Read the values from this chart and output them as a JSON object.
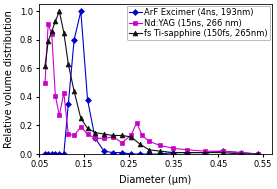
{
  "title": "",
  "xlabel": "Diameter (μm)",
  "ylabel": "Relative volume distribution",
  "xlim": [
    0.05,
    0.57
  ],
  "ylim": [
    0.0,
    1.05
  ],
  "xticks": [
    0.05,
    0.15,
    0.25,
    0.35,
    0.45,
    0.55
  ],
  "yticks": [
    0.0,
    0.2,
    0.4,
    0.6,
    0.8,
    1.0
  ],
  "series": [
    {
      "label": "ArF Excimer (4ns, 193nm)",
      "color": "#0000cc",
      "marker": "D",
      "markersize": 3.0,
      "x": [
        0.063,
        0.07,
        0.078,
        0.086,
        0.095,
        0.105,
        0.115,
        0.128,
        0.143,
        0.158,
        0.175,
        0.195,
        0.215,
        0.235,
        0.255,
        0.275,
        0.295,
        0.32,
        0.35,
        0.38,
        0.42,
        0.46,
        0.5,
        0.54
      ],
      "y": [
        0.0,
        0.0,
        0.0,
        0.0,
        0.0,
        0.0,
        0.35,
        0.8,
        1.0,
        0.38,
        0.11,
        0.02,
        0.01,
        0.01,
        0.0,
        0.0,
        0.0,
        0.0,
        0.01,
        0.01,
        0.01,
        0.02,
        0.01,
        0.0
      ]
    },
    {
      "label": "Nd:YAG (15ns, 266 nm)",
      "color": "#cc00cc",
      "marker": "s",
      "markersize": 3.5,
      "x": [
        0.063,
        0.07,
        0.078,
        0.086,
        0.095,
        0.105,
        0.115,
        0.128,
        0.143,
        0.158,
        0.175,
        0.195,
        0.215,
        0.235,
        0.255,
        0.268,
        0.28,
        0.295,
        0.32,
        0.35,
        0.38,
        0.42,
        0.46,
        0.5,
        0.54
      ],
      "y": [
        0.5,
        0.91,
        0.84,
        0.41,
        0.27,
        0.43,
        0.14,
        0.13,
        0.19,
        0.14,
        0.11,
        0.11,
        0.12,
        0.08,
        0.13,
        0.22,
        0.13,
        0.09,
        0.06,
        0.04,
        0.03,
        0.02,
        0.02,
        0.01,
        0.0
      ]
    },
    {
      "label": "fs Ti-sapphire (150fs, 265nm)",
      "color": "#111111",
      "marker": "^",
      "markersize": 3.5,
      "x": [
        0.063,
        0.07,
        0.078,
        0.086,
        0.095,
        0.105,
        0.115,
        0.128,
        0.143,
        0.158,
        0.175,
        0.195,
        0.215,
        0.235,
        0.255,
        0.275,
        0.295,
        0.32,
        0.35,
        0.38,
        0.42,
        0.46,
        0.5,
        0.54
      ],
      "y": [
        0.62,
        0.79,
        0.86,
        0.93,
        1.0,
        0.85,
        0.63,
        0.44,
        0.25,
        0.18,
        0.15,
        0.14,
        0.13,
        0.13,
        0.12,
        0.07,
        0.03,
        0.02,
        0.01,
        0.01,
        0.01,
        0.01,
        0.0,
        0.0
      ]
    }
  ],
  "legend_fontsize": 6.0,
  "axis_fontsize": 7.0,
  "tick_fontsize": 6.0
}
